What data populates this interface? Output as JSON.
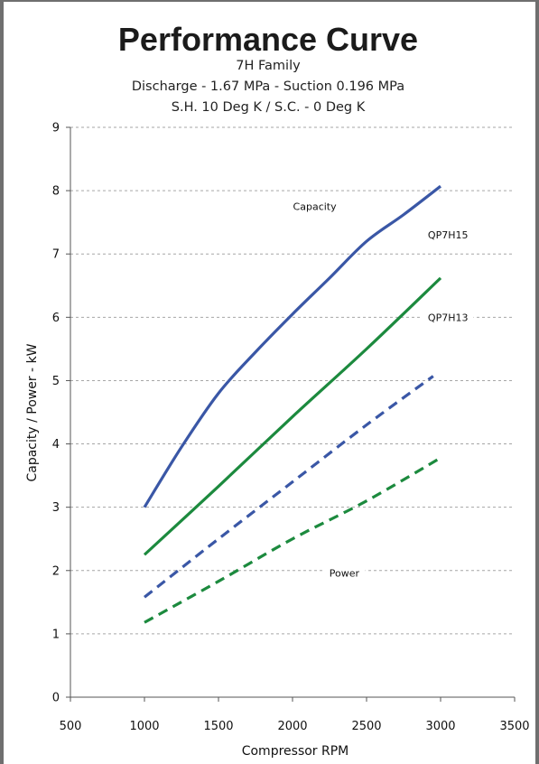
{
  "chart_data": {
    "type": "line",
    "title": "Performance Curve",
    "subtitles": [
      "7H Family",
      "Discharge - 1.67 MPa - Suction 0.196 MPa",
      "S.H. 10 Deg K / S.C. - 0 Deg K"
    ],
    "xlabel": "Compressor RPM",
    "ylabel": "Capacity / Power - kW",
    "xlim": [
      500,
      3500
    ],
    "ylim": [
      0,
      9
    ],
    "xticks": [
      500,
      1000,
      1500,
      2000,
      2500,
      3000,
      3500
    ],
    "yticks": [
      0,
      1,
      2,
      3,
      4,
      5,
      6,
      7,
      8,
      9
    ],
    "grid": "horizontal dashed",
    "series": [
      {
        "name": "QP7H15",
        "group": "Capacity",
        "style": "solid",
        "color": "#3a57a6",
        "x": [
          1000,
          1250,
          1500,
          1750,
          2000,
          2250,
          2500,
          2750,
          3000
        ],
        "y": [
          3.0,
          3.95,
          4.8,
          5.45,
          6.05,
          6.62,
          7.2,
          7.62,
          8.07
        ]
      },
      {
        "name": "QP7H13",
        "group": "Capacity",
        "style": "solid",
        "color": "#1c8a3e",
        "x": [
          1000,
          1500,
          2000,
          2500,
          3000
        ],
        "y": [
          2.25,
          3.33,
          4.43,
          5.5,
          6.62
        ]
      },
      {
        "name": "QP7H15",
        "group": "Power",
        "style": "dashed",
        "color": "#3a57a6",
        "x": [
          1000,
          1500,
          2000,
          2500,
          2950
        ],
        "y": [
          1.58,
          2.5,
          3.4,
          4.3,
          5.07
        ]
      },
      {
        "name": "QP7H13",
        "group": "Power",
        "style": "dashed",
        "color": "#1c8a3e",
        "x": [
          1000,
          1500,
          2000,
          2500,
          3000
        ],
        "y": [
          1.18,
          1.83,
          2.5,
          3.1,
          3.78
        ]
      }
    ],
    "annotations": [
      {
        "text": "Capacity",
        "x": 2150,
        "y": 7.75
      },
      {
        "text": "QP7H15",
        "x": 3050,
        "y": 7.3
      },
      {
        "text": "QP7H13",
        "x": 3050,
        "y": 6.0
      },
      {
        "text": "Power",
        "x": 2350,
        "y": 1.96
      }
    ]
  }
}
